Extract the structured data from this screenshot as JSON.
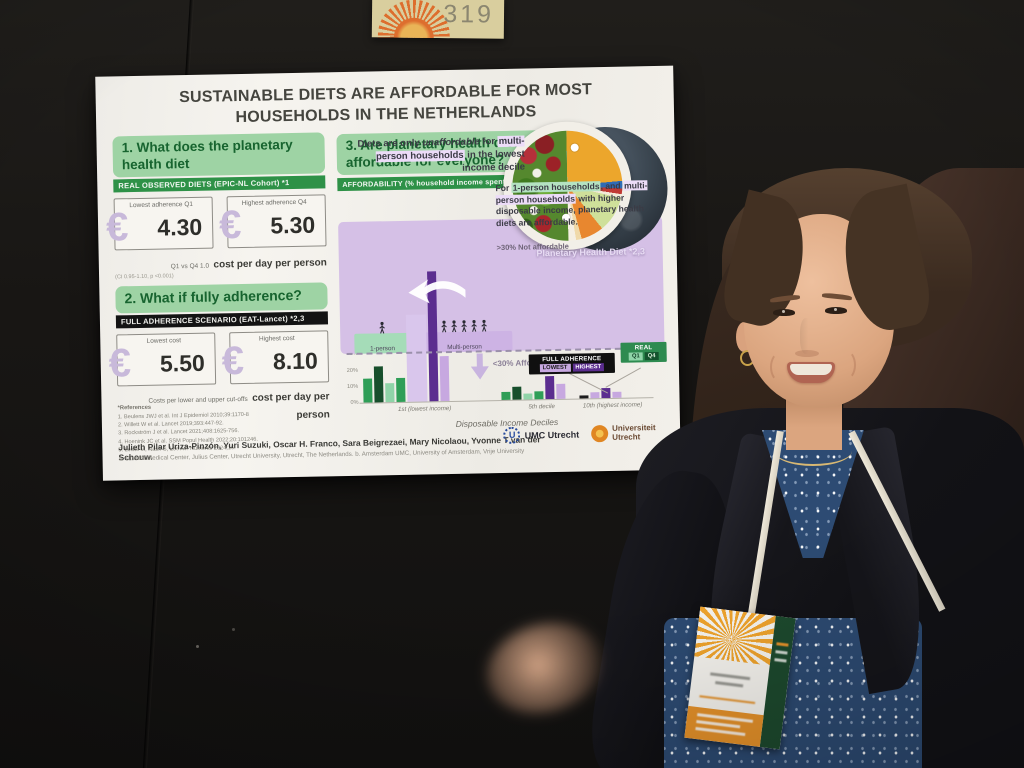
{
  "scene": {
    "board_number": "319"
  },
  "poster": {
    "title": "SUSTAINABLE DIETS ARE AFFORDABLE FOR MOST HOUSEHOLDS IN THE NETHERLANDS",
    "section1": {
      "heading": "1. What does the planetary health diet",
      "subheading": "REAL OBSERVED DIETS (EPIC-NL Cohort) *1",
      "cards": [
        {
          "label": "Lowest adherence Q1",
          "currency": "€",
          "value": "4.30"
        },
        {
          "label": "Highest adherence Q4",
          "currency": "€",
          "value": "5.30"
        }
      ],
      "note_small": "Q1 vs Q4 1.0",
      "note_bold": "cost per day per person",
      "note_ci": "(CI 0.95-1.10, p <0.001)"
    },
    "section2": {
      "heading": "2. What if fully adherence?",
      "subheading": "FULL ADHERENCE SCENARIO (EAT-Lancet) *2,3",
      "cards": [
        {
          "label": "Lowest cost",
          "currency": "€",
          "value": "5.50"
        },
        {
          "label": "Highest cost",
          "currency": "€",
          "value": "8.10"
        }
      ],
      "note_small": "Costs per lower and upper cut-offs",
      "note_bold": "cost per day per person"
    },
    "references": {
      "heading": "*References",
      "items": [
        "1.  Beulens JWJ et al. Int J Epidemiol 2010;39:1170-8",
        "2.  Willett W et al. Lancet 2019;393:447-92.",
        "3.  Rockström J et al. Lancet 2021;408:1625-756.",
        "4.  Hoenink JC et al. SSM Popul Health 2022;20:101246.",
        "5.  Lewis M, Nash S, Lee AJ. Nutrients 2024;16."
      ]
    },
    "section3": {
      "heading": "3. Are planetary health diets affordable for everyone?",
      "subheading": "AFFORDABILITY (% household income spent on food)",
      "plate_label": "Planetary Health Diet *2,3",
      "callout1": [
        {
          "t": "Diets are only ",
          "s": "plain"
        },
        {
          "t": "unaffordable",
          "s": "it"
        },
        {
          "t": " for ",
          "s": "plain"
        },
        {
          "t": "multi-person households",
          "s": "hl-purple"
        },
        {
          "t": " in the lowest income decile",
          "s": "plain"
        }
      ],
      "callout2": [
        {
          "t": "For ",
          "s": "plain"
        },
        {
          "t": "1-person households",
          "s": "hl-green"
        },
        {
          "t": ", and ",
          "s": "plain"
        },
        {
          "t": "multi-person households",
          "s": "hl-purple"
        },
        {
          "t": " with higher disposable income, planetary health diets are affordable.",
          "s": "plain"
        }
      ],
      "threshold_above": ">30% Not affordable",
      "threshold_below": "<30% Affordable",
      "group_one_person": "1-person",
      "group_multi_person": "Multi-person"
    },
    "authors": "Julieth Pilar Uriza-Pinzón, Yuri Suzuki, Oscar H. Franco, Sara Beigrezaei, Mary Nicolaou, Yvonne T van der Schouw.",
    "affiliations": "a. Utrecht Medical Center, Julius Center, Utrecht University, Utrecht, The Netherlands. b. Amsterdam UMC, University of Amsterdam, Vrije University",
    "logos": {
      "umc_initial": "U",
      "umc": "UMC Utrecht",
      "uu": "Universiteit Utrecht"
    }
  },
  "chart_data": {
    "type": "bar",
    "title": "AFFORDABILITY (% household income spent on food)",
    "xlabel": "Disposable Income Deciles",
    "ylabel": "Affordability %",
    "ylim": [
      0,
      100
    ],
    "threshold_pct": 30,
    "yticks": [
      "100%",
      "90%",
      "80%",
      "70%",
      "60%",
      "50%",
      "40%",
      "30%",
      "20%",
      "10%",
      "0%"
    ],
    "groups": [
      {
        "label": "1st (lowest income)",
        "bars": [
          {
            "series": "REAL Q1 (1-person)",
            "v": 15,
            "c": "#2f9e57"
          },
          {
            "series": "REAL Q4 (1-person)",
            "v": 22,
            "c": "#174f2c"
          },
          {
            "series": "REAL Q1 (multi-person)",
            "v": 12,
            "c": "#8fd4a8"
          },
          {
            "series": "REAL Q4 (multi-person)",
            "v": 15,
            "c": "#2f9e57"
          },
          {
            "series": "FULL ADHERENCE LOWEST (multi-person)",
            "v": 54,
            "c": "#d9c6ec",
            "w": 20
          },
          {
            "series": "FULL ADHERENCE HIGHEST (multi-person)",
            "v": 80,
            "c": "#5b2d8f"
          },
          {
            "series": "FULL ADHERENCE LOWEST (1-person)",
            "v": 28,
            "c": "#c7a8e0"
          }
        ]
      },
      {
        "label": "5th decile",
        "bars": [
          {
            "series": "REAL Q1",
            "v": 5,
            "c": "#2f9e57"
          },
          {
            "series": "REAL Q4",
            "v": 8,
            "c": "#174f2c"
          },
          {
            "series": "REAL Q1",
            "v": 4,
            "c": "#8fd4a8"
          },
          {
            "series": "REAL Q4",
            "v": 5,
            "c": "#2f9e57"
          },
          {
            "series": "FULL ADHERENCE HIGHEST",
            "v": 14,
            "c": "#5b2d8f"
          },
          {
            "series": "FULL ADHERENCE LOWEST",
            "v": 9,
            "c": "#c7a8e0"
          }
        ]
      },
      {
        "label": "10th (highest income)",
        "bars": [
          {
            "series": "REAL",
            "v": 2,
            "c": "#1c1c1c"
          },
          {
            "series": "FULL ADHERENCE LOWEST",
            "v": 4,
            "c": "#c7a8e0"
          },
          {
            "series": "FULL ADHERENCE HIGHEST",
            "v": 6,
            "c": "#5b2d8f"
          },
          {
            "series": "FULL ADHERENCE LOWEST",
            "v": 4,
            "c": "#c7a8e0"
          }
        ]
      }
    ],
    "legend": [
      {
        "title": "FULL ADHERENCE",
        "style": "dark",
        "chips": [
          {
            "label": "LOWEST",
            "bg": "#c7a8e0",
            "fg": "#1a1a1a"
          },
          {
            "label": "HIGHEST",
            "bg": "#5b2d8f",
            "fg": "#ffffff"
          }
        ]
      },
      {
        "title": "REAL",
        "style": "green",
        "chips": [
          {
            "label": "Q1",
            "bg": "#8fd4a8",
            "fg": "#0d3d22"
          },
          {
            "label": "Q4",
            "bg": "#14532d",
            "fg": "#d8ecd8"
          }
        ]
      }
    ],
    "annotations": [
      ">30% Not affordable",
      "<30% Affordable"
    ],
    "legend_position": "above 10th decile group"
  }
}
